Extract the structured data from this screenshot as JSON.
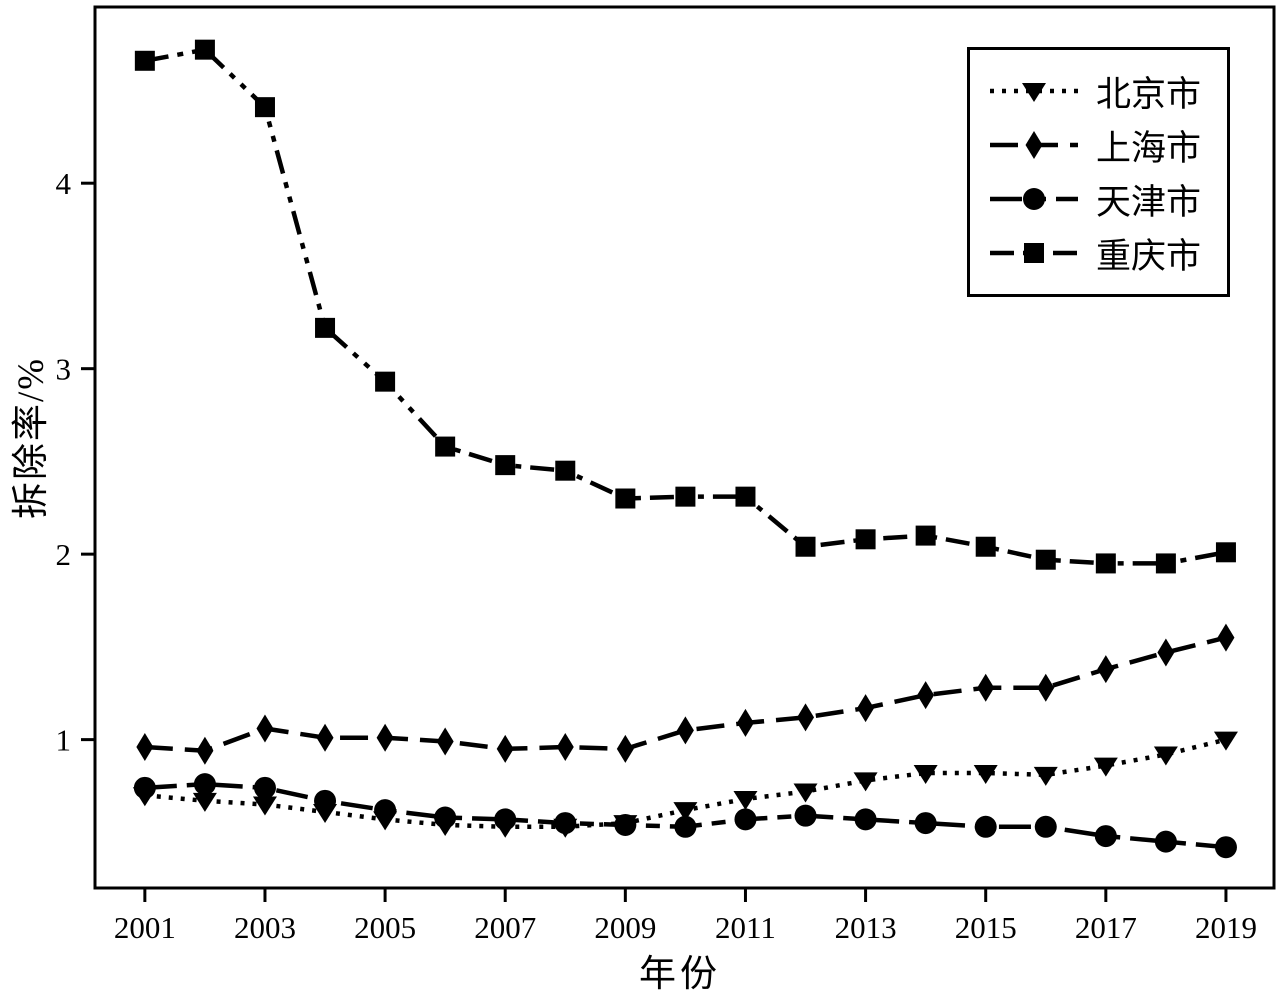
{
  "figure": {
    "background_color": "#ffffff",
    "ink_color": "#000000"
  },
  "chart_data": {
    "type": "line",
    "title": "",
    "xlabel": "年份",
    "ylabel": "拆除率/%",
    "grid": false,
    "legend_position": "top-right",
    "xlim": [
      2000.17,
      2019.8
    ],
    "ylim": [
      0.2,
      4.95
    ],
    "xticks": [
      2001,
      2003,
      2005,
      2007,
      2009,
      2011,
      2013,
      2015,
      2017,
      2019
    ],
    "yticks": [
      1,
      2,
      3,
      4
    ],
    "x": [
      2001,
      2002,
      2003,
      2004,
      2005,
      2006,
      2007,
      2008,
      2009,
      2010,
      2011,
      2012,
      2013,
      2014,
      2015,
      2016,
      2017,
      2018,
      2019
    ],
    "series": [
      {
        "name": "北京市",
        "marker": "triangle-down",
        "linestyle": "dotted",
        "color": "#000000",
        "values": [
          0.7,
          0.67,
          0.65,
          0.61,
          0.57,
          0.54,
          0.53,
          0.53,
          0.55,
          0.62,
          0.68,
          0.72,
          0.78,
          0.82,
          0.82,
          0.81,
          0.86,
          0.92,
          1.0
        ]
      },
      {
        "name": "上海市",
        "marker": "diamond",
        "linestyle": "long-dash",
        "color": "#000000",
        "values": [
          0.96,
          0.94,
          1.06,
          1.01,
          1.01,
          0.99,
          0.95,
          0.96,
          0.95,
          1.05,
          1.09,
          1.12,
          1.17,
          1.24,
          1.28,
          1.28,
          1.38,
          1.47,
          1.55
        ]
      },
      {
        "name": "天津市",
        "marker": "circle",
        "linestyle": "dash",
        "color": "#000000",
        "values": [
          0.74,
          0.76,
          0.74,
          0.67,
          0.62,
          0.58,
          0.57,
          0.55,
          0.54,
          0.53,
          0.57,
          0.59,
          0.57,
          0.55,
          0.53,
          0.53,
          0.48,
          0.45,
          0.42
        ]
      },
      {
        "name": "重庆市",
        "marker": "square",
        "linestyle": "dash-dot-dot",
        "color": "#000000",
        "values": [
          4.66,
          4.72,
          4.41,
          3.22,
          2.93,
          2.58,
          2.48,
          2.45,
          2.3,
          2.31,
          2.31,
          2.04,
          2.08,
          2.1,
          2.04,
          1.97,
          1.95,
          1.95,
          2.01
        ]
      }
    ]
  }
}
